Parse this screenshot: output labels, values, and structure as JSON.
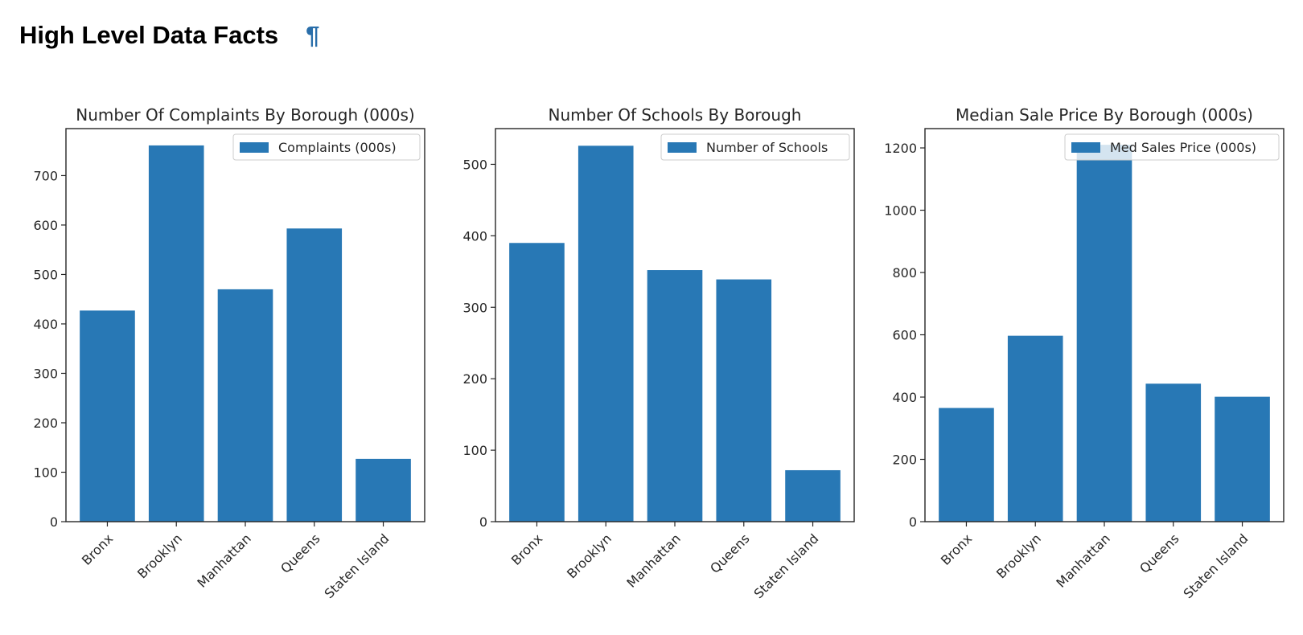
{
  "page": {
    "heading": "High Level Data Facts",
    "anchor_symbol": "¶"
  },
  "bar_color": "#2878b5",
  "chart_data": [
    {
      "type": "bar",
      "title": "Number Of Complaints By Borough (000s)",
      "categories": [
        "Bronx",
        "Brooklyn",
        "Manhattan",
        "Queens",
        "Staten Island"
      ],
      "values": [
        427,
        761,
        470,
        593,
        127
      ],
      "legend": "Complaints (000s)",
      "legend_position": "upper right",
      "ylim": [
        0,
        795
      ],
      "yticks": [
        0,
        100,
        200,
        300,
        400,
        500,
        600,
        700
      ],
      "xlabel": "",
      "ylabel": ""
    },
    {
      "type": "bar",
      "title": "Number Of Schools By Borough",
      "categories": [
        "Bronx",
        "Brooklyn",
        "Manhattan",
        "Queens",
        "Staten Island"
      ],
      "values": [
        390,
        526,
        352,
        339,
        72
      ],
      "legend": "Number of Schools",
      "legend_position": "upper right",
      "ylim": [
        0,
        550
      ],
      "yticks": [
        0,
        100,
        200,
        300,
        400,
        500
      ],
      "xlabel": "",
      "ylabel": ""
    },
    {
      "type": "bar",
      "title": "Median Sale Price By Borough (000s)",
      "categories": [
        "Bronx",
        "Brooklyn",
        "Manhattan",
        "Queens",
        "Staten Island"
      ],
      "values": [
        365,
        597,
        1210,
        443,
        401
      ],
      "legend": "Med Sales Price (000s)",
      "legend_position": "upper right",
      "ylim": [
        0,
        1262
      ],
      "yticks": [
        0,
        200,
        400,
        600,
        800,
        1000,
        1200
      ],
      "xlabel": "",
      "ylabel": ""
    }
  ]
}
